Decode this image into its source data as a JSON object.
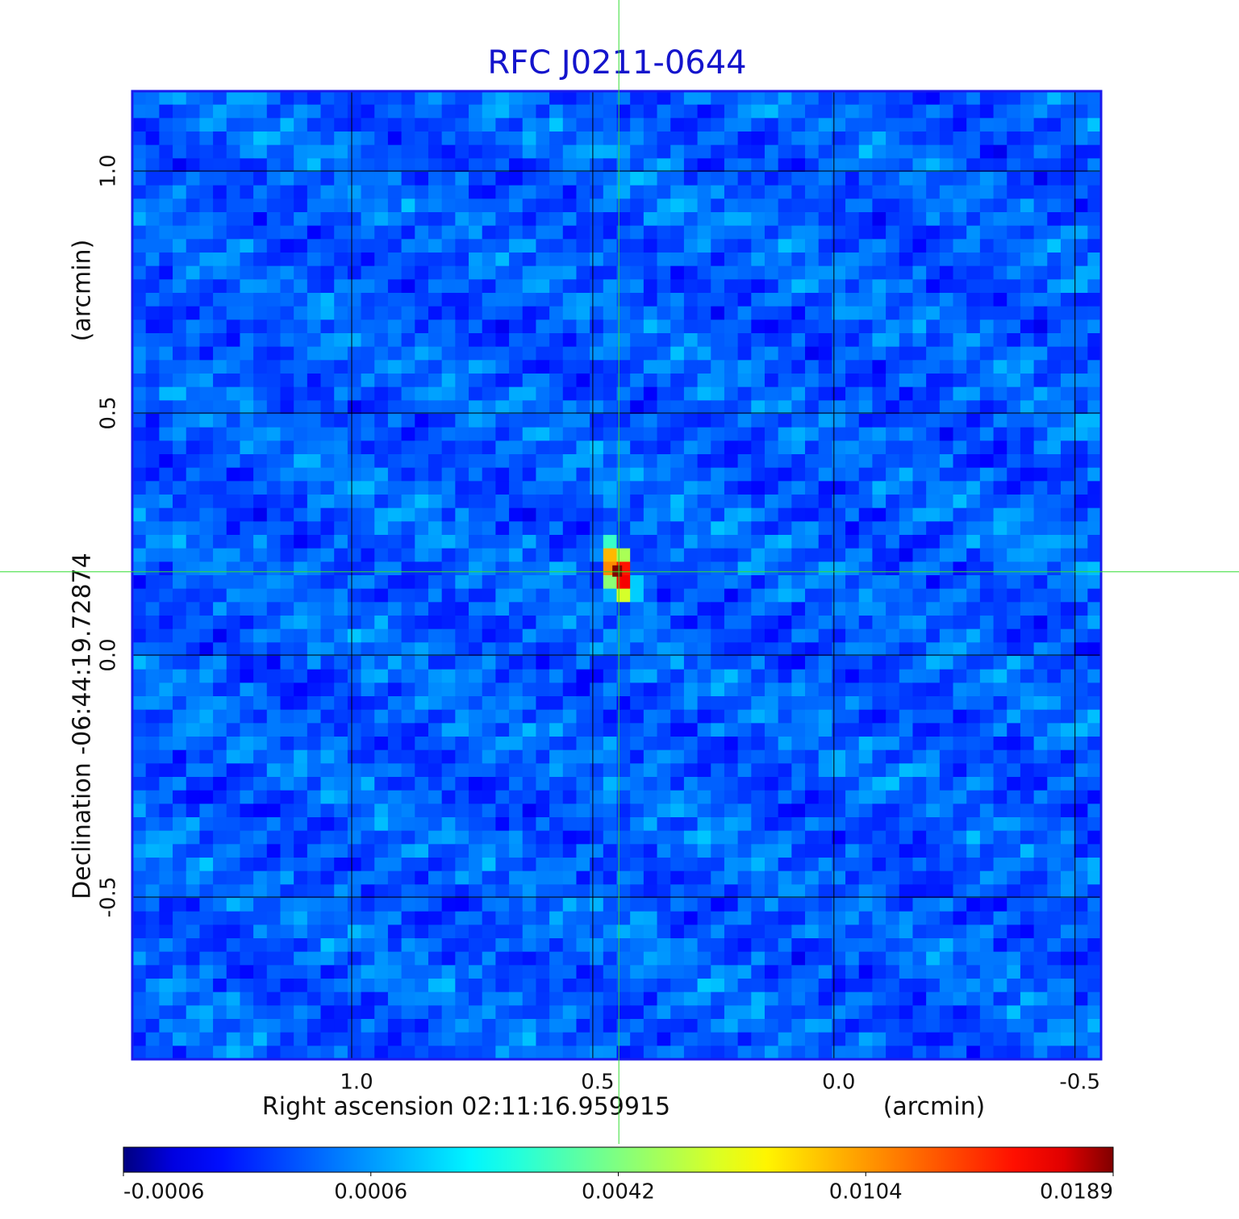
{
  "chart_data": {
    "type": "image",
    "title": "RFC J0211-0644",
    "x_label": "Right ascension  02:11:16.959915",
    "x_unit": "(arcmin)",
    "y_label": "Declination  -06:44:19.72874",
    "y_unit": "(arcmin)",
    "xlim": [
      1.455,
      -0.554
    ],
    "ylim": [
      -0.835,
      1.165
    ],
    "xticks": [
      {
        "value": 1.0,
        "label": "1.0"
      },
      0.5,
      {
        "value": 0.0,
        "label": "0.0"
      },
      -0.5
    ],
    "yticks": [
      {
        "value": 1.0,
        "label": "1.0"
      },
      0.5,
      {
        "value": 0.0,
        "label": "0.0"
      },
      -0.5
    ],
    "grid": true,
    "crosshair": {
      "x": 0.446,
      "y": 0.172,
      "color": "#33dd33"
    },
    "source": {
      "x": 0.446,
      "y": 0.172,
      "peak": 0.0189
    },
    "colorbar": {
      "colormap": "jet",
      "ticks": [
        -0.0006,
        0.0006,
        0.0042,
        0.0104,
        0.0189
      ]
    },
    "title_color": "#1414cc",
    "frame_color": "#1a1aee"
  }
}
